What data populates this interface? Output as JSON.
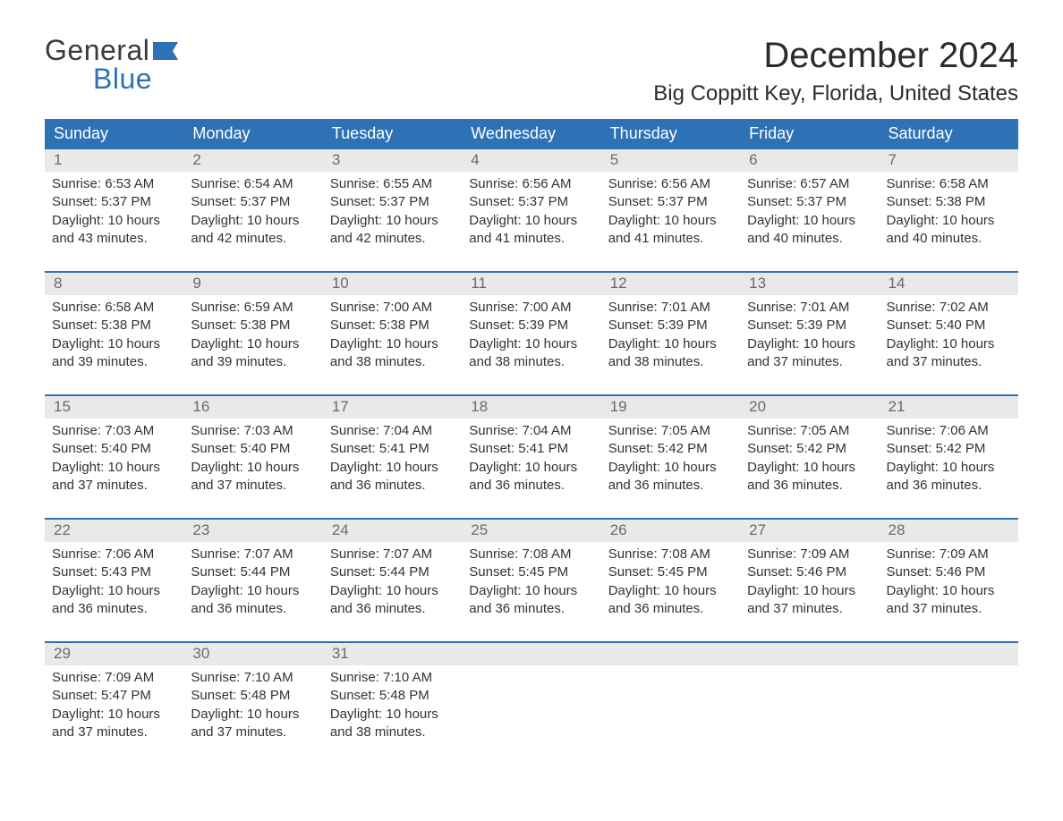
{
  "logo": {
    "word1": "General",
    "word2": "Blue",
    "flag_color": "#2e72b5"
  },
  "title": "December 2024",
  "location": "Big Coppitt Key, Florida, United States",
  "colors": {
    "header_bg": "#2e72b5",
    "header_text": "#ffffff",
    "daynum_bg": "#e9e9e9",
    "daynum_text": "#6a6a6a",
    "body_text": "#333333",
    "week_border": "#2e72b5",
    "page_bg": "#ffffff"
  },
  "fonts": {
    "title_pt": 40,
    "location_pt": 24,
    "head_pt": 18,
    "daynum_pt": 17,
    "body_pt": 15
  },
  "dayHeaders": [
    "Sunday",
    "Monday",
    "Tuesday",
    "Wednesday",
    "Thursday",
    "Friday",
    "Saturday"
  ],
  "weeks": [
    [
      {
        "n": "1",
        "sunrise": "Sunrise: 6:53 AM",
        "sunset": "Sunset: 5:37 PM",
        "d1": "Daylight: 10 hours",
        "d2": "and 43 minutes."
      },
      {
        "n": "2",
        "sunrise": "Sunrise: 6:54 AM",
        "sunset": "Sunset: 5:37 PM",
        "d1": "Daylight: 10 hours",
        "d2": "and 42 minutes."
      },
      {
        "n": "3",
        "sunrise": "Sunrise: 6:55 AM",
        "sunset": "Sunset: 5:37 PM",
        "d1": "Daylight: 10 hours",
        "d2": "and 42 minutes."
      },
      {
        "n": "4",
        "sunrise": "Sunrise: 6:56 AM",
        "sunset": "Sunset: 5:37 PM",
        "d1": "Daylight: 10 hours",
        "d2": "and 41 minutes."
      },
      {
        "n": "5",
        "sunrise": "Sunrise: 6:56 AM",
        "sunset": "Sunset: 5:37 PM",
        "d1": "Daylight: 10 hours",
        "d2": "and 41 minutes."
      },
      {
        "n": "6",
        "sunrise": "Sunrise: 6:57 AM",
        "sunset": "Sunset: 5:37 PM",
        "d1": "Daylight: 10 hours",
        "d2": "and 40 minutes."
      },
      {
        "n": "7",
        "sunrise": "Sunrise: 6:58 AM",
        "sunset": "Sunset: 5:38 PM",
        "d1": "Daylight: 10 hours",
        "d2": "and 40 minutes."
      }
    ],
    [
      {
        "n": "8",
        "sunrise": "Sunrise: 6:58 AM",
        "sunset": "Sunset: 5:38 PM",
        "d1": "Daylight: 10 hours",
        "d2": "and 39 minutes."
      },
      {
        "n": "9",
        "sunrise": "Sunrise: 6:59 AM",
        "sunset": "Sunset: 5:38 PM",
        "d1": "Daylight: 10 hours",
        "d2": "and 39 minutes."
      },
      {
        "n": "10",
        "sunrise": "Sunrise: 7:00 AM",
        "sunset": "Sunset: 5:38 PM",
        "d1": "Daylight: 10 hours",
        "d2": "and 38 minutes."
      },
      {
        "n": "11",
        "sunrise": "Sunrise: 7:00 AM",
        "sunset": "Sunset: 5:39 PM",
        "d1": "Daylight: 10 hours",
        "d2": "and 38 minutes."
      },
      {
        "n": "12",
        "sunrise": "Sunrise: 7:01 AM",
        "sunset": "Sunset: 5:39 PM",
        "d1": "Daylight: 10 hours",
        "d2": "and 38 minutes."
      },
      {
        "n": "13",
        "sunrise": "Sunrise: 7:01 AM",
        "sunset": "Sunset: 5:39 PM",
        "d1": "Daylight: 10 hours",
        "d2": "and 37 minutes."
      },
      {
        "n": "14",
        "sunrise": "Sunrise: 7:02 AM",
        "sunset": "Sunset: 5:40 PM",
        "d1": "Daylight: 10 hours",
        "d2": "and 37 minutes."
      }
    ],
    [
      {
        "n": "15",
        "sunrise": "Sunrise: 7:03 AM",
        "sunset": "Sunset: 5:40 PM",
        "d1": "Daylight: 10 hours",
        "d2": "and 37 minutes."
      },
      {
        "n": "16",
        "sunrise": "Sunrise: 7:03 AM",
        "sunset": "Sunset: 5:40 PM",
        "d1": "Daylight: 10 hours",
        "d2": "and 37 minutes."
      },
      {
        "n": "17",
        "sunrise": "Sunrise: 7:04 AM",
        "sunset": "Sunset: 5:41 PM",
        "d1": "Daylight: 10 hours",
        "d2": "and 36 minutes."
      },
      {
        "n": "18",
        "sunrise": "Sunrise: 7:04 AM",
        "sunset": "Sunset: 5:41 PM",
        "d1": "Daylight: 10 hours",
        "d2": "and 36 minutes."
      },
      {
        "n": "19",
        "sunrise": "Sunrise: 7:05 AM",
        "sunset": "Sunset: 5:42 PM",
        "d1": "Daylight: 10 hours",
        "d2": "and 36 minutes."
      },
      {
        "n": "20",
        "sunrise": "Sunrise: 7:05 AM",
        "sunset": "Sunset: 5:42 PM",
        "d1": "Daylight: 10 hours",
        "d2": "and 36 minutes."
      },
      {
        "n": "21",
        "sunrise": "Sunrise: 7:06 AM",
        "sunset": "Sunset: 5:42 PM",
        "d1": "Daylight: 10 hours",
        "d2": "and 36 minutes."
      }
    ],
    [
      {
        "n": "22",
        "sunrise": "Sunrise: 7:06 AM",
        "sunset": "Sunset: 5:43 PM",
        "d1": "Daylight: 10 hours",
        "d2": "and 36 minutes."
      },
      {
        "n": "23",
        "sunrise": "Sunrise: 7:07 AM",
        "sunset": "Sunset: 5:44 PM",
        "d1": "Daylight: 10 hours",
        "d2": "and 36 minutes."
      },
      {
        "n": "24",
        "sunrise": "Sunrise: 7:07 AM",
        "sunset": "Sunset: 5:44 PM",
        "d1": "Daylight: 10 hours",
        "d2": "and 36 minutes."
      },
      {
        "n": "25",
        "sunrise": "Sunrise: 7:08 AM",
        "sunset": "Sunset: 5:45 PM",
        "d1": "Daylight: 10 hours",
        "d2": "and 36 minutes."
      },
      {
        "n": "26",
        "sunrise": "Sunrise: 7:08 AM",
        "sunset": "Sunset: 5:45 PM",
        "d1": "Daylight: 10 hours",
        "d2": "and 36 minutes."
      },
      {
        "n": "27",
        "sunrise": "Sunrise: 7:09 AM",
        "sunset": "Sunset: 5:46 PM",
        "d1": "Daylight: 10 hours",
        "d2": "and 37 minutes."
      },
      {
        "n": "28",
        "sunrise": "Sunrise: 7:09 AM",
        "sunset": "Sunset: 5:46 PM",
        "d1": "Daylight: 10 hours",
        "d2": "and 37 minutes."
      }
    ],
    [
      {
        "n": "29",
        "sunrise": "Sunrise: 7:09 AM",
        "sunset": "Sunset: 5:47 PM",
        "d1": "Daylight: 10 hours",
        "d2": "and 37 minutes."
      },
      {
        "n": "30",
        "sunrise": "Sunrise: 7:10 AM",
        "sunset": "Sunset: 5:48 PM",
        "d1": "Daylight: 10 hours",
        "d2": "and 37 minutes."
      },
      {
        "n": "31",
        "sunrise": "Sunrise: 7:10 AM",
        "sunset": "Sunset: 5:48 PM",
        "d1": "Daylight: 10 hours",
        "d2": "and 38 minutes."
      },
      null,
      null,
      null,
      null
    ]
  ]
}
